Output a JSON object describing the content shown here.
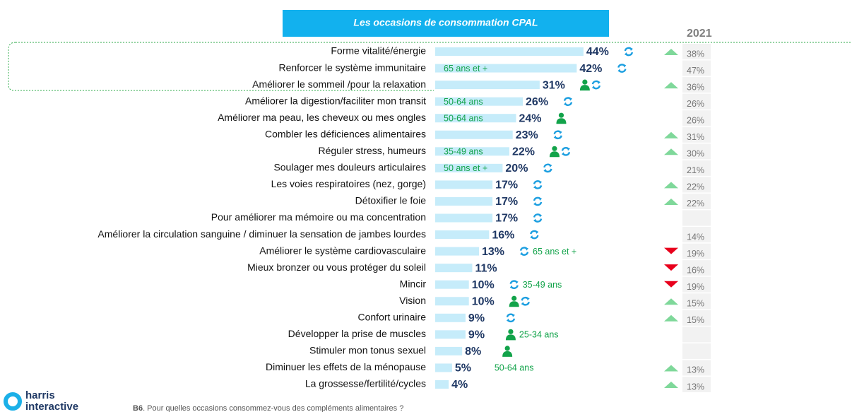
{
  "chart_data": {
    "type": "bar",
    "title": "Les occasions de consommation CPAL",
    "comparison_label": "2021",
    "categories": [
      "Forme vitalité/énergie",
      "Renforcer le système immunitaire",
      "Améliorer le sommeil /pour la relaxation",
      "Améliorer la digestion/faciliter mon transit",
      "Améliorer ma peau, les cheveux ou mes ongles",
      "Combler les déficiences alimentaires",
      "Réguler stress, humeurs",
      "Soulager mes douleurs articulaires",
      "Les voies respiratoires (nez, gorge)",
      "Détoxifier le foie",
      "Pour améliorer ma mémoire ou ma concentration",
      "Améliorer la circulation sanguine / diminuer la sensation de jambes lourdes",
      "Améliorer le système cardiovasculaire",
      "Mieux bronzer ou vous protéger du soleil",
      "Mincir",
      "Vision",
      "Confort urinaire",
      "Développer la prise de muscles",
      "Stimuler mon tonus sexuel",
      "Diminuer les effets de la ménopause",
      "La grossesse/fertilité/cycles"
    ],
    "values": [
      44,
      42,
      31,
      26,
      24,
      23,
      22,
      20,
      17,
      17,
      17,
      16,
      13,
      11,
      10,
      10,
      9,
      9,
      8,
      5,
      4
    ],
    "value_labels": [
      "44%",
      "42%",
      "31%",
      "26%",
      "24%",
      "23%",
      "22%",
      "20%",
      "17%",
      "17%",
      "17%",
      "16%",
      "13%",
      "11%",
      "10%",
      "10%",
      "9%",
      "9%",
      "8%",
      "5%",
      "4%"
    ],
    "color": "#c6ecfa",
    "values_2021": [
      38,
      47,
      36,
      26,
      26,
      31,
      30,
      21,
      22,
      22,
      null,
      14,
      19,
      16,
      19,
      15,
      15,
      null,
      null,
      13,
      13
    ],
    "values_2021_labels": [
      "38%",
      "47%",
      "36%",
      "26%",
      "26%",
      "31%",
      "30%",
      "21%",
      "22%",
      "22%",
      null,
      "14%",
      "19%",
      "16%",
      "19%",
      "15%",
      "15%",
      null,
      null,
      "13%",
      "13%"
    ],
    "trend": [
      "up",
      null,
      "up",
      null,
      null,
      "up",
      "up",
      null,
      "up",
      "up",
      null,
      null,
      "down",
      "down",
      "down",
      "up",
      "up",
      null,
      null,
      "up",
      "up"
    ],
    "icons": [
      [
        "refresh"
      ],
      [
        "refresh"
      ],
      [
        "person",
        "refresh"
      ],
      [
        "refresh"
      ],
      [
        "person"
      ],
      [
        "refresh"
      ],
      [
        "person",
        "refresh"
      ],
      [
        "refresh"
      ],
      [
        "refresh"
      ],
      [
        "refresh"
      ],
      [
        "refresh"
      ],
      [
        "refresh"
      ],
      [
        "refresh"
      ],
      [],
      [
        "refresh"
      ],
      [
        "person",
        "refresh"
      ],
      [
        "refresh"
      ],
      [
        "person"
      ],
      [
        "person"
      ],
      [],
      []
    ],
    "age_labels": [
      null,
      "65 ans et +",
      null,
      "50-64 ans",
      "50-64 ans",
      null,
      "35-49 ans",
      "50 ans et +",
      null,
      null,
      null,
      null,
      "65 ans et +",
      null,
      "35-49 ans",
      null,
      null,
      "25-34 ans",
      null,
      "50-64 ans",
      null
    ]
  },
  "footer": {
    "logo_line1": "harris",
    "logo_line2": "interactive",
    "question_code": "B6",
    "question": ". Pour quelles occasions consommez-vous des compléments alimentaires ?"
  }
}
